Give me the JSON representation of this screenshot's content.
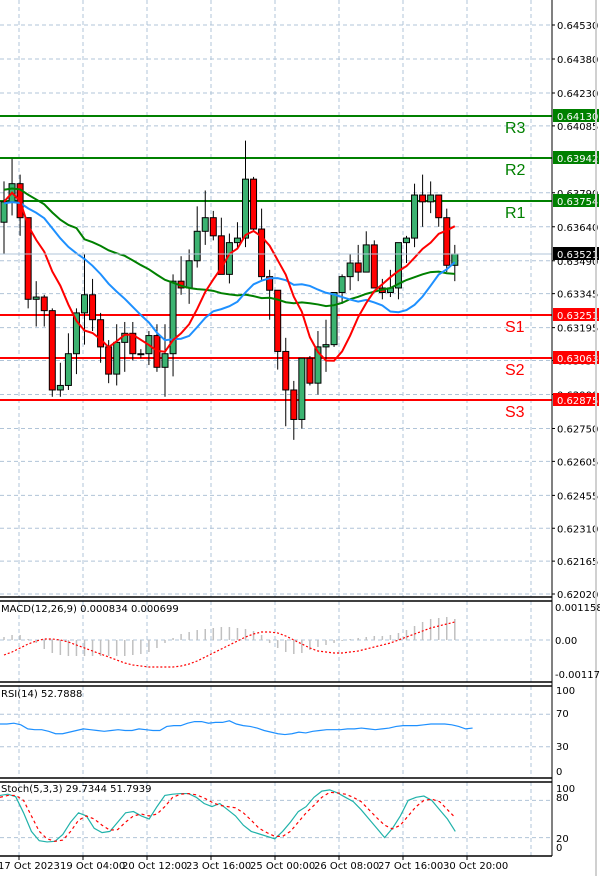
{
  "chart_data": [
    {
      "type": "candlestick",
      "title": "",
      "panel": "main",
      "ylim": [
        0.6202,
        0.6453
      ],
      "y_ticks": [
        "0.64530",
        "0.64380",
        "0.64230",
        "0.64085",
        "0.63790",
        "0.63640",
        "0.63490",
        "0.63345",
        "0.63195",
        "0.63050",
        "0.62900",
        "0.62750",
        "0.62605",
        "0.62455",
        "0.62310",
        "0.62165",
        "0.62020"
      ],
      "x_ticks": [
        "17 Oct 2023",
        "19 Oct 04:00",
        "20 Oct 12:00",
        "23 Oct 16:00",
        "25 Oct 00:00",
        "26 Oct 08:00",
        "27 Oct 16:00",
        "30 Oct 20:00"
      ],
      "current_price": "0.63521",
      "levels": [
        {
          "name": "R3",
          "value": "0.64130",
          "color": "#008000"
        },
        {
          "name": "R2",
          "value": "0.63942",
          "color": "#008000"
        },
        {
          "name": "R1",
          "value": "0.63754",
          "color": "#008000"
        },
        {
          "name": "S1",
          "value": "0.63251",
          "color": "#ff0000"
        },
        {
          "name": "S2",
          "value": "0.63063",
          "color": "#ff0000"
        },
        {
          "name": "S3",
          "value": "0.62875",
          "color": "#ff0000"
        }
      ],
      "candles": [
        [
          0.6366,
          0.6384,
          0.6352,
          0.6375
        ],
        [
          0.6375,
          0.6394,
          0.6369,
          0.6383
        ],
        [
          0.6383,
          0.6387,
          0.636,
          0.6368
        ],
        [
          0.6368,
          0.6368,
          0.6328,
          0.6332
        ],
        [
          0.6332,
          0.634,
          0.632,
          0.6333
        ],
        [
          0.6333,
          0.6334,
          0.632,
          0.6327
        ],
        [
          0.6327,
          0.6328,
          0.6289,
          0.6292
        ],
        [
          0.6292,
          0.6304,
          0.6289,
          0.6294
        ],
        [
          0.6294,
          0.6317,
          0.6292,
          0.6308
        ],
        [
          0.6308,
          0.6328,
          0.6299,
          0.6326
        ],
        [
          0.6326,
          0.6352,
          0.6312,
          0.6334
        ],
        [
          0.6334,
          0.6341,
          0.6318,
          0.6323
        ],
        [
          0.6323,
          0.6326,
          0.6304,
          0.6311
        ],
        [
          0.6311,
          0.6314,
          0.6295,
          0.6299
        ],
        [
          0.6299,
          0.6321,
          0.6294,
          0.6313
        ],
        [
          0.6313,
          0.6322,
          0.63,
          0.6317
        ],
        [
          0.6317,
          0.6322,
          0.6305,
          0.6308
        ],
        [
          0.6308,
          0.631,
          0.6306,
          0.6308
        ],
        [
          0.6308,
          0.6318,
          0.6303,
          0.6316
        ],
        [
          0.6316,
          0.6321,
          0.63,
          0.6302
        ],
        [
          0.6302,
          0.6321,
          0.6289,
          0.6308
        ],
        [
          0.6308,
          0.6343,
          0.6298,
          0.634
        ],
        [
          0.634,
          0.6351,
          0.6334,
          0.6337
        ],
        [
          0.6337,
          0.6354,
          0.633,
          0.6349
        ],
        [
          0.6349,
          0.6373,
          0.6346,
          0.6362
        ],
        [
          0.6362,
          0.638,
          0.6356,
          0.6368
        ],
        [
          0.6368,
          0.6371,
          0.6358,
          0.636
        ],
        [
          0.636,
          0.6368,
          0.6345,
          0.6343
        ],
        [
          0.6343,
          0.6361,
          0.6339,
          0.6357
        ],
        [
          0.6357,
          0.6366,
          0.6354,
          0.6359
        ],
        [
          0.6359,
          0.6402,
          0.6355,
          0.6385
        ],
        [
          0.6385,
          0.6386,
          0.6362,
          0.6363
        ],
        [
          0.6363,
          0.6372,
          0.634,
          0.6342
        ],
        [
          0.6342,
          0.6345,
          0.6323,
          0.6336
        ],
        [
          0.6336,
          0.6336,
          0.6301,
          0.6309
        ],
        [
          0.6309,
          0.6315,
          0.6276,
          0.6292
        ],
        [
          0.6292,
          0.6296,
          0.627,
          0.6279
        ],
        [
          0.6279,
          0.6306,
          0.6275,
          0.6306
        ],
        [
          0.6306,
          0.6307,
          0.6294,
          0.6295
        ],
        [
          0.6295,
          0.6318,
          0.629,
          0.6311
        ],
        [
          0.6311,
          0.6323,
          0.63,
          0.6312
        ],
        [
          0.6312,
          0.6329,
          0.6311,
          0.6335
        ],
        [
          0.6335,
          0.6343,
          0.633,
          0.6342
        ],
        [
          0.6342,
          0.6352,
          0.6336,
          0.6348
        ],
        [
          0.6348,
          0.6356,
          0.634,
          0.6344
        ],
        [
          0.6344,
          0.6362,
          0.6346,
          0.6356
        ],
        [
          0.6356,
          0.6358,
          0.6338,
          0.6337
        ],
        [
          0.6337,
          0.6341,
          0.6332,
          0.6335
        ],
        [
          0.6335,
          0.6345,
          0.6333,
          0.6337
        ],
        [
          0.6337,
          0.6351,
          0.6332,
          0.6357
        ],
        [
          0.6357,
          0.636,
          0.6348,
          0.6359
        ],
        [
          0.6359,
          0.6383,
          0.6355,
          0.6378
        ],
        [
          0.6378,
          0.6387,
          0.6364,
          0.6375
        ],
        [
          0.6375,
          0.6384,
          0.637,
          0.6378
        ],
        [
          0.6378,
          0.6378,
          0.6364,
          0.6368
        ],
        [
          0.6368,
          0.6372,
          0.6344,
          0.6347
        ],
        [
          0.6347,
          0.6356,
          0.634,
          0.6352
        ]
      ],
      "ma_series": [
        {
          "name": "MA slow (green)",
          "color": "#008000"
        },
        {
          "name": "MA mid (blue)",
          "color": "#1e90ff"
        },
        {
          "name": "MA fast (red)",
          "color": "#ff0000"
        }
      ]
    },
    {
      "type": "bar",
      "panel": "macd",
      "title": "MACD(12,26,9) 0.000834 0.000699",
      "ylim": [
        -0.001173,
        0.001158
      ],
      "y_ticks": [
        "0.001158",
        "0.00",
        "-0.001173"
      ],
      "series": [
        {
          "name": "MACD histogram",
          "color": "#c0c0c0"
        },
        {
          "name": "Signal",
          "color": "#ff0000",
          "style": "dotted"
        }
      ]
    },
    {
      "type": "line",
      "panel": "rsi",
      "title": "RSI(14) 52.7888",
      "ylim": [
        0,
        100
      ],
      "y_ticks": [
        "100",
        "70",
        "30",
        "0"
      ],
      "series": [
        {
          "name": "RSI",
          "color": "#1e90ff"
        }
      ]
    },
    {
      "type": "line",
      "panel": "stoch",
      "title": "Stoch(5,3,3) 29.7344 51.7939",
      "ylim": [
        0,
        100
      ],
      "y_ticks": [
        "100",
        "80",
        "20",
        "0"
      ],
      "series": [
        {
          "name": "%K",
          "color": "#20b2aa"
        },
        {
          "name": "%D",
          "color": "#ff0000",
          "style": "dashed"
        }
      ]
    }
  ],
  "panels": {
    "macd_label": "MACD(12,26,9) 0.000834 0.000699",
    "rsi_label": "RSI(14) 52.7888",
    "stoch_label": "Stoch(5,3,3) 29.7344 51.7939"
  }
}
